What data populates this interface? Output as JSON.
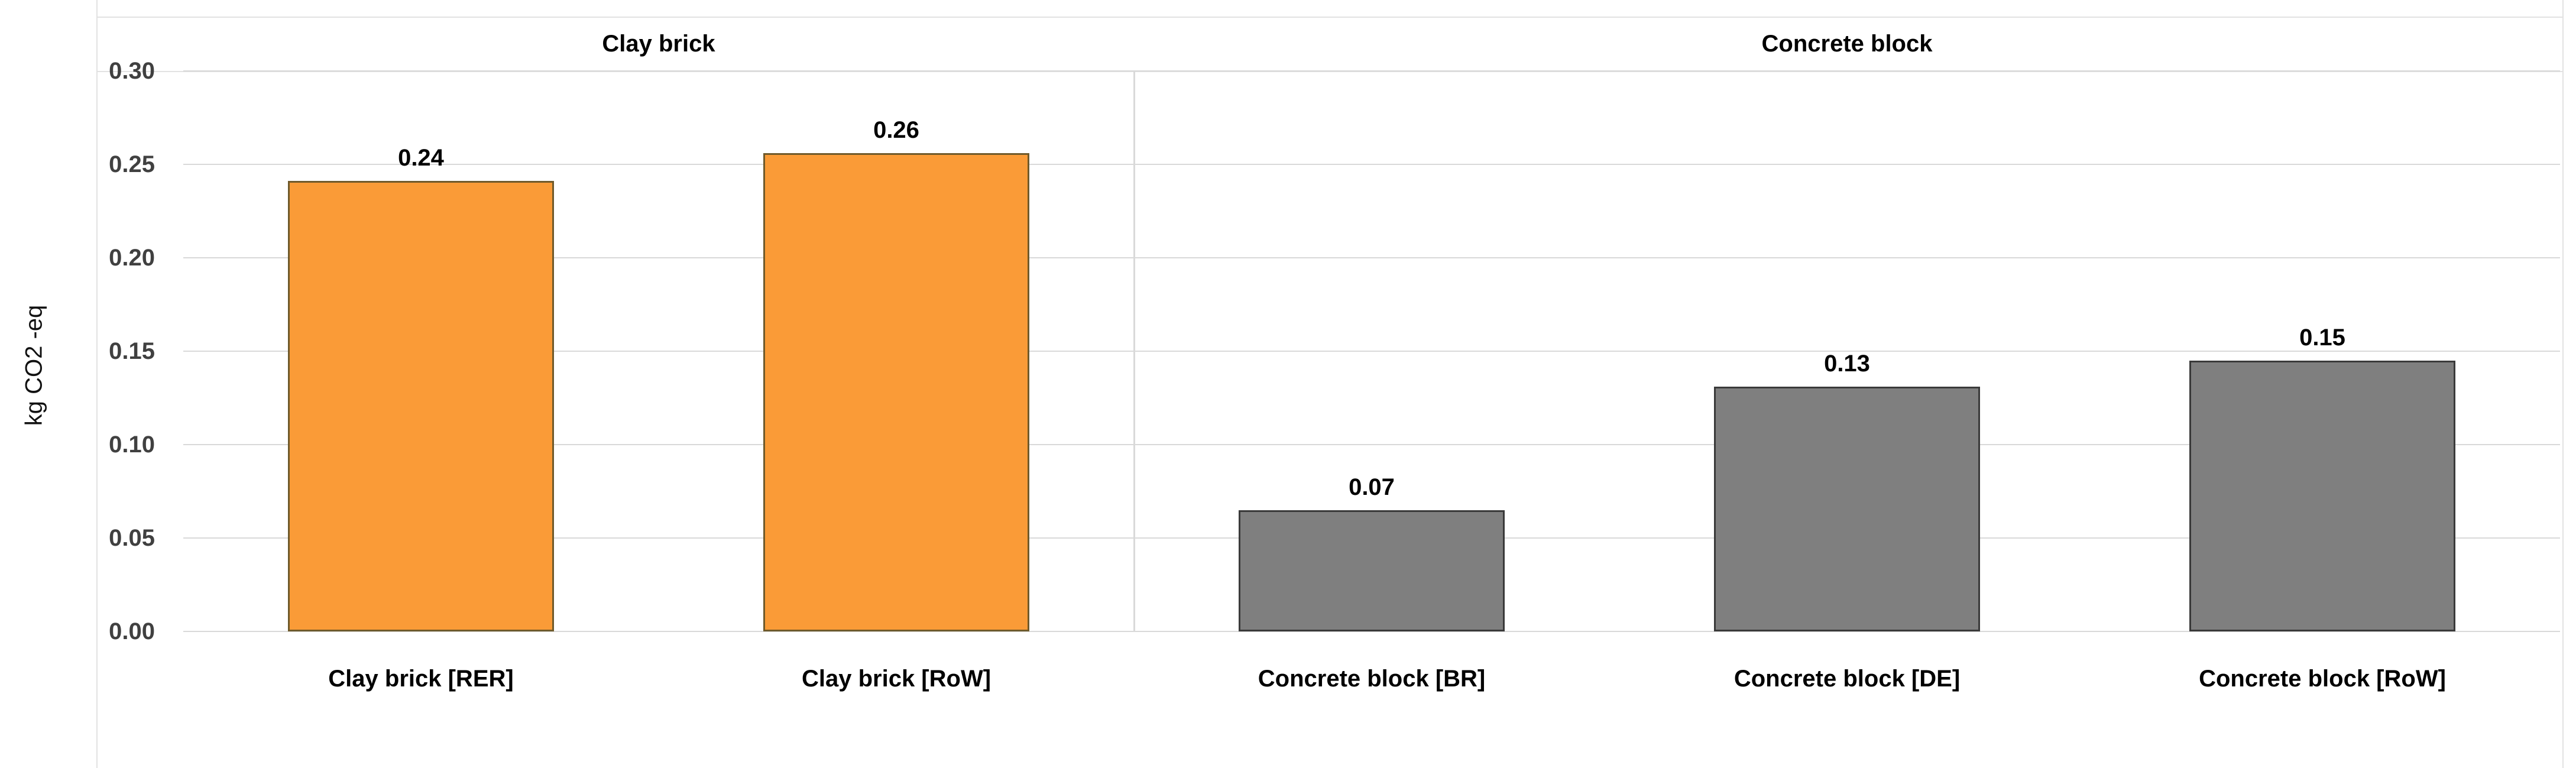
{
  "chart_data": {
    "type": "bar",
    "title": "",
    "ylabel": "kg CO2 -eq",
    "xlabel": "",
    "ylim": [
      0,
      0.3
    ],
    "ytick_labels": [
      "0.30",
      "0.25",
      "0.20",
      "0.15",
      "0.10",
      "0.05",
      "0.00"
    ],
    "grid": true,
    "legend": null,
    "categories": [
      "Clay brick [RER]",
      "Clay brick [RoW]",
      "Concrete block [BR]",
      "Concrete block [DE]",
      "Concrete block [RoW]"
    ],
    "values": [
      0.24,
      0.26,
      0.07,
      0.13,
      0.15
    ],
    "bar_heights_actual": [
      0.241,
      0.256,
      0.065,
      0.131,
      0.145
    ],
    "groups": [
      {
        "label": "Clay brick",
        "fill": "#FA9B37",
        "border": "#6F5A2B",
        "bars": [
          {
            "category": "Clay brick [RER]",
            "value_label": "0.24",
            "value": 0.241
          },
          {
            "category": "Clay brick [RoW]",
            "value_label": "0.26",
            "value": 0.256
          }
        ]
      },
      {
        "label": "Concrete block",
        "fill": "#7F7F7F",
        "border": "#3A3A3A",
        "bars": [
          {
            "category": "Concrete block [BR]",
            "value_label": "0.07",
            "value": 0.065
          },
          {
            "category": "Concrete block [DE]",
            "value_label": "0.13",
            "value": 0.131
          },
          {
            "category": "Concrete block [RoW]",
            "value_label": "0.15",
            "value": 0.145
          }
        ]
      }
    ]
  },
  "colors": {
    "background": "#FFFFFF",
    "gridline": "#D9D9D9",
    "chart_border": "#E2E2E2",
    "group_divider": "#D9D9D9",
    "tick_text": "#404040",
    "label_text": "#000000",
    "clay_fill": "#FA9B37",
    "clay_border": "#6F5A2B",
    "concrete_fill": "#7F7F7F",
    "concrete_border": "#3A3A3A"
  }
}
